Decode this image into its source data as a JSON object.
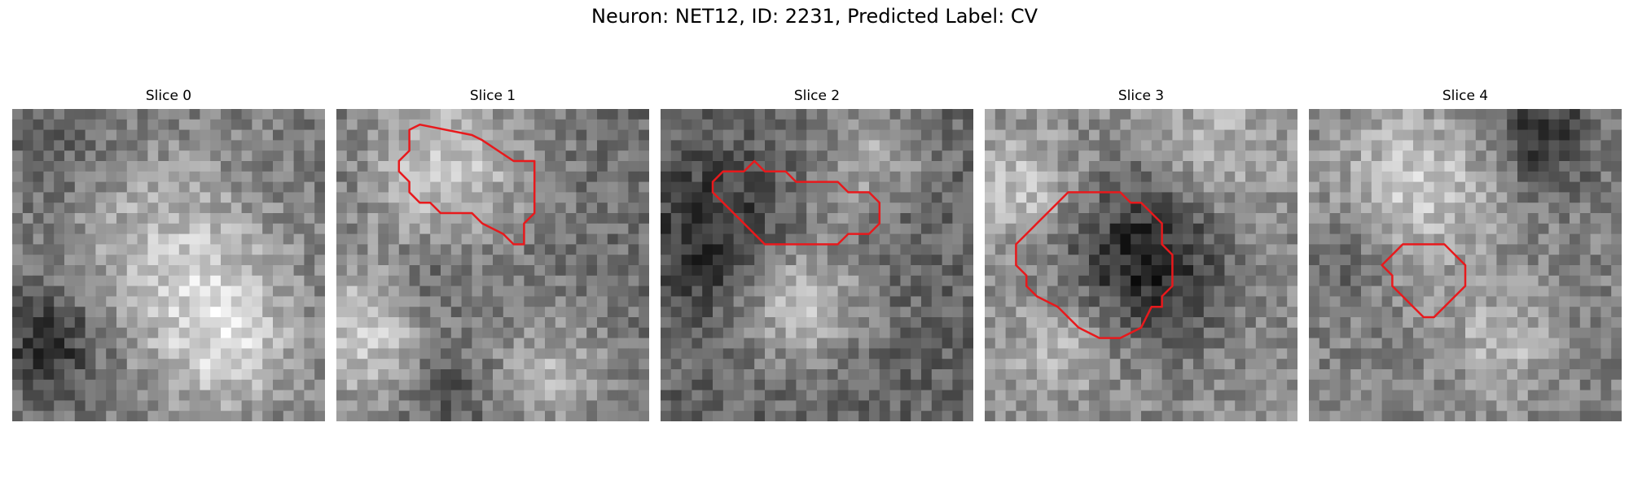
{
  "figure": {
    "title": "Neuron: NET12, ID: 2231, Predicted Label: CV"
  },
  "panels": [
    {
      "title": "Slice 0",
      "image_kind": "grayscale microscopy crop (noisy)",
      "blobs": [
        {
          "cx": 15,
          "cy": 13,
          "r": 9,
          "level": 190
        },
        {
          "cx": 20,
          "cy": 22,
          "r": 7,
          "level": 205
        },
        {
          "cx": 3,
          "cy": 22,
          "r": 5,
          "level": 45
        },
        {
          "cx": 3,
          "cy": 4,
          "r": 5,
          "level": 95
        }
      ],
      "base_level": 120,
      "contour": []
    },
    {
      "title": "Slice 1",
      "image_kind": "grayscale microscopy crop (noisy)",
      "blobs": [
        {
          "cx": 10,
          "cy": 5,
          "r": 8,
          "level": 200
        },
        {
          "cx": 2,
          "cy": 21,
          "r": 7,
          "level": 205
        },
        {
          "cx": 20,
          "cy": 25,
          "r": 6,
          "level": 175
        },
        {
          "cx": 8,
          "cy": 16,
          "r": 4,
          "level": 70
        },
        {
          "cx": 10,
          "cy": 26,
          "r": 4,
          "level": 70
        }
      ],
      "base_level": 110,
      "contour": [
        [
          8,
          1.5
        ],
        [
          13,
          2.5
        ],
        [
          14,
          3
        ],
        [
          17,
          5
        ],
        [
          19,
          5
        ],
        [
          19,
          10
        ],
        [
          18,
          11
        ],
        [
          18,
          13
        ],
        [
          17,
          13
        ],
        [
          16,
          12
        ],
        [
          14,
          11
        ],
        [
          13,
          10
        ],
        [
          10,
          10
        ],
        [
          9,
          9
        ],
        [
          8,
          9
        ],
        [
          7,
          8
        ],
        [
          7,
          7
        ],
        [
          6,
          6
        ],
        [
          6,
          5
        ],
        [
          7,
          4
        ],
        [
          7,
          2
        ]
      ]
    },
    {
      "title": "Slice 2",
      "image_kind": "grayscale microscopy crop (noisy)",
      "blobs": [
        {
          "cx": 5,
          "cy": 12,
          "r": 7,
          "level": 40
        },
        {
          "cx": 13,
          "cy": 18,
          "r": 6,
          "level": 200
        },
        {
          "cx": 20,
          "cy": 4,
          "r": 5,
          "level": 165
        },
        {
          "cx": 15,
          "cy": 8,
          "r": 4,
          "level": 120
        }
      ],
      "base_level": 100,
      "contour": [
        [
          6,
          6
        ],
        [
          8,
          6
        ],
        [
          9,
          5
        ],
        [
          10,
          6
        ],
        [
          12,
          6
        ],
        [
          13,
          7
        ],
        [
          17,
          7
        ],
        [
          18,
          8
        ],
        [
          20,
          8
        ],
        [
          21,
          9
        ],
        [
          21,
          11
        ],
        [
          20,
          12
        ],
        [
          18,
          12
        ],
        [
          17,
          13
        ],
        [
          10,
          13
        ],
        [
          9,
          12
        ],
        [
          8,
          11
        ],
        [
          7,
          10
        ],
        [
          6,
          9
        ],
        [
          5,
          8
        ],
        [
          5,
          7
        ]
      ]
    },
    {
      "title": "Slice 3",
      "image_kind": "grayscale microscopy crop (noisy)",
      "blobs": [
        {
          "cx": 15,
          "cy": 14,
          "r": 8,
          "level": 35
        },
        {
          "cx": 3,
          "cy": 7,
          "r": 5,
          "level": 200
        },
        {
          "cx": 7,
          "cy": 22,
          "r": 5,
          "level": 190
        },
        {
          "cx": 22,
          "cy": 4,
          "r": 6,
          "level": 185
        }
      ],
      "base_level": 140,
      "contour": [
        [
          11,
          8
        ],
        [
          13,
          8
        ],
        [
          14,
          9
        ],
        [
          15,
          9
        ],
        [
          16,
          10
        ],
        [
          17,
          11
        ],
        [
          17,
          13
        ],
        [
          18,
          14
        ],
        [
          18,
          17
        ],
        [
          17,
          18
        ],
        [
          17,
          19
        ],
        [
          16,
          19
        ],
        [
          15,
          21
        ],
        [
          13,
          22
        ],
        [
          11,
          22
        ],
        [
          9,
          21
        ],
        [
          8,
          20
        ],
        [
          7,
          19
        ],
        [
          5,
          18
        ],
        [
          4,
          17
        ],
        [
          4,
          16
        ],
        [
          3,
          15
        ],
        [
          3,
          13
        ],
        [
          4,
          12
        ],
        [
          5,
          11
        ],
        [
          6,
          10
        ],
        [
          7,
          9
        ],
        [
          8,
          8
        ]
      ]
    },
    {
      "title": "Slice 4",
      "image_kind": "grayscale microscopy crop (noisy)",
      "blobs": [
        {
          "cx": 10,
          "cy": 7,
          "r": 8,
          "level": 200
        },
        {
          "cx": 18,
          "cy": 22,
          "r": 5,
          "level": 185
        },
        {
          "cx": 22,
          "cy": 2,
          "r": 5,
          "level": 45
        },
        {
          "cx": 3,
          "cy": 14,
          "r": 4,
          "level": 90
        }
      ],
      "base_level": 130,
      "contour": [
        [
          10,
          13
        ],
        [
          13,
          13
        ],
        [
          14,
          14
        ],
        [
          15,
          15
        ],
        [
          15,
          17
        ],
        [
          14,
          18
        ],
        [
          13,
          19
        ],
        [
          12,
          20
        ],
        [
          11,
          20
        ],
        [
          10,
          19
        ],
        [
          9,
          18
        ],
        [
          8,
          17
        ],
        [
          8,
          16
        ],
        [
          7,
          15
        ],
        [
          8,
          14
        ],
        [
          9,
          13
        ]
      ]
    }
  ],
  "style": {
    "contour_color": "#e8191c"
  }
}
